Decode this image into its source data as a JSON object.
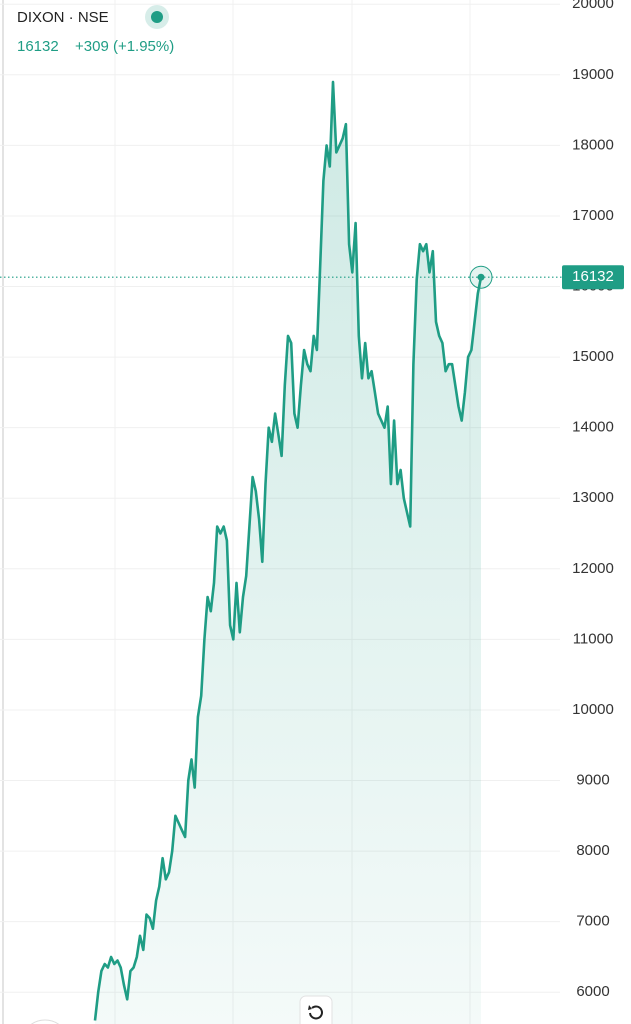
{
  "chart_data": {
    "type": "line",
    "title": "DIXON · NSE",
    "price": 16132,
    "change": "+309 (+1.95%)",
    "color": "#1f9d85",
    "grid": true,
    "ylim": [
      5550,
      20060
    ],
    "yticks": [
      6000,
      7000,
      8000,
      9000,
      10000,
      11000,
      12000,
      13000,
      14000,
      15000,
      16000,
      17000,
      18000,
      19000,
      20000
    ],
    "values": [
      5600,
      6000,
      6300,
      6400,
      6350,
      6500,
      6400,
      6450,
      6350,
      6100,
      5900,
      6300,
      6350,
      6500,
      6800,
      6600,
      7100,
      7050,
      6900,
      7300,
      7500,
      7900,
      7600,
      7700,
      8000,
      8500,
      8400,
      8300,
      8200,
      9000,
      9300,
      8900,
      9900,
      10200,
      11000,
      11600,
      11400,
      11800,
      12600,
      12500,
      12600,
      12400,
      11200,
      11000,
      11800,
      11100,
      11600,
      11900,
      12600,
      13300,
      13100,
      12700,
      12100,
      13200,
      14000,
      13800,
      14200,
      13900,
      13600,
      14600,
      15300,
      15200,
      14200,
      14000,
      14600,
      15100,
      14900,
      14800,
      15300,
      15100,
      16300,
      17500,
      18000,
      17700,
      18900,
      17900,
      18000,
      18100,
      18300,
      16600,
      16200,
      16900,
      15300,
      14700,
      15200,
      14700,
      14800,
      14500,
      14200,
      14100,
      14000,
      14300,
      13200,
      14100,
      13200,
      13400,
      13000,
      12800,
      12600,
      14900,
      16100,
      16600,
      16500,
      16600,
      16200,
      16500,
      15500,
      15300,
      15200,
      14800,
      14900,
      14900,
      14600,
      14300,
      14100,
      14500,
      15000,
      15100,
      15500,
      15900,
      16132
    ]
  }
}
